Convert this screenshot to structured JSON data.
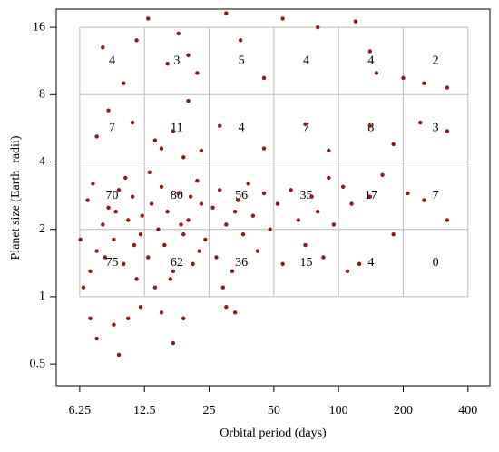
{
  "chart_data": {
    "type": "scatter",
    "xlabel": "Orbital period (days)",
    "ylabel": "Planet size (Earth−radii)",
    "xscale": "log",
    "yscale": "log",
    "xlim": [
      4.86,
      506
    ],
    "ylim": [
      0.4,
      19.3
    ],
    "xticks": [
      6.25,
      12.5,
      25,
      50,
      100,
      200,
      400
    ],
    "yticks": [
      0.5,
      1,
      2,
      4,
      8,
      16
    ],
    "grid_x": [
      6.25,
      12.5,
      25,
      50,
      100,
      200,
      400
    ],
    "grid_y": [
      1,
      2,
      4,
      8,
      16
    ],
    "grid_color": "#bbbbbb",
    "cell_counts": [
      [
        75,
        62,
        36,
        15,
        4,
        0
      ],
      [
        70,
        80,
        56,
        35,
        17,
        7
      ],
      [
        7,
        11,
        4,
        7,
        8,
        3
      ],
      [
        4,
        3,
        5,
        4,
        4,
        2
      ]
    ],
    "series": [
      {
        "color": "#8b1a10",
        "x": [
          6.5,
          7,
          7.5,
          8,
          8.5,
          9,
          9.5,
          10,
          10.5,
          11,
          11.5,
          12,
          6.8,
          7.2,
          8.2,
          9.2,
          10.2,
          11.2,
          12.2,
          6.3,
          13,
          13.5,
          14,
          14.5,
          15,
          15.5,
          16,
          17,
          18,
          19,
          20,
          21,
          22,
          23,
          24,
          13.2,
          16.5,
          18.5,
          20.5,
          22.5,
          26,
          27,
          28,
          30,
          32,
          34,
          36,
          38,
          40,
          42,
          45,
          48,
          29,
          33,
          52,
          55,
          60,
          65,
          70,
          75,
          80,
          85,
          90,
          95,
          105,
          115,
          125,
          140,
          160,
          180,
          210,
          250,
          320,
          110,
          7,
          7.5,
          9,
          10.5,
          12,
          15,
          17,
          19,
          9.5,
          30,
          33,
          7.5,
          8.5,
          11,
          14,
          15,
          17,
          20,
          23,
          28,
          45,
          70,
          90,
          140,
          180,
          240,
          320,
          19,
          8,
          10,
          11.5,
          13,
          18,
          20,
          22,
          30,
          35,
          45,
          55,
          80,
          120,
          140,
          150,
          200,
          250,
          320,
          16
        ],
        "values": [
          1.1,
          1.3,
          1.6,
          2.1,
          2.5,
          1.8,
          3.0,
          1.4,
          2.2,
          2.8,
          1.2,
          1.9,
          2.7,
          3.2,
          1.5,
          2.4,
          3.4,
          1.7,
          2.3,
          1.8,
          1.5,
          2.6,
          1.1,
          2.0,
          3.1,
          1.7,
          2.4,
          1.3,
          2.9,
          1.9,
          2.2,
          1.4,
          3.3,
          2.6,
          1.8,
          3.6,
          1.2,
          2.1,
          2.8,
          1.6,
          2.5,
          1.5,
          3.0,
          2.1,
          1.3,
          2.7,
          1.9,
          3.2,
          2.3,
          1.6,
          2.9,
          2.0,
          1.1,
          2.4,
          2.6,
          1.4,
          3.0,
          2.2,
          1.7,
          2.8,
          2.4,
          1.5,
          3.4,
          2.1,
          3.1,
          2.6,
          1.4,
          2.8,
          3.5,
          1.9,
          2.9,
          2.7,
          2.2,
          1.3,
          0.8,
          0.65,
          0.75,
          0.8,
          0.9,
          0.85,
          0.62,
          0.8,
          0.55,
          0.9,
          0.85,
          5.2,
          6.8,
          6.0,
          5.0,
          4.6,
          5.5,
          7.5,
          4.5,
          5.8,
          4.6,
          5.9,
          4.5,
          5.8,
          4.8,
          6.0,
          5.5,
          4.2,
          13,
          9,
          14,
          17.5,
          15,
          12,
          10,
          18.5,
          14,
          9.5,
          17.5,
          16,
          17,
          12.5,
          10,
          9.5,
          9,
          8.6,
          11
        ]
      }
    ]
  }
}
